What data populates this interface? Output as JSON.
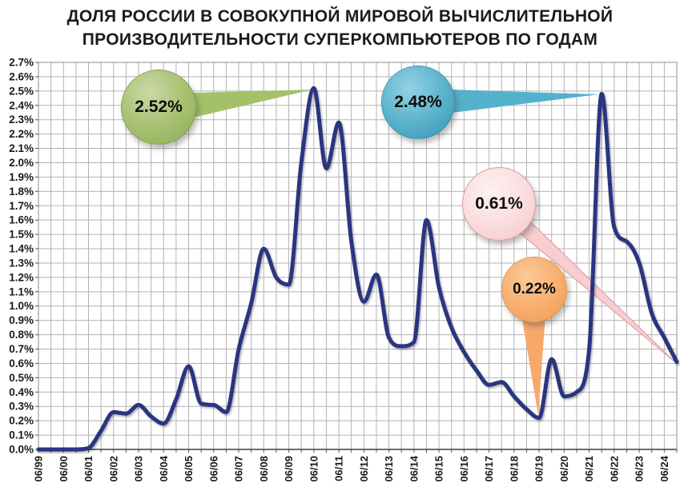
{
  "title": {
    "line1": "ДОЛЯ РОССИИ В СОВОКУПНОЙ МИРОВОЙ ВЫЧИСЛИТЕЛЬНОЙ",
    "line2": "ПРОИЗВОДИТЕЛЬНОСТИ СУПЕРКОМПЬЮТЕРОВ ПО ГОДАМ"
  },
  "chart_data": {
    "type": "line",
    "x": [
      "06/99",
      "11/99",
      "06/00",
      "11/00",
      "06/01",
      "11/01",
      "06/02",
      "11/02",
      "06/03",
      "11/03",
      "06/04",
      "11/04",
      "06/05",
      "11/05",
      "06/06",
      "11/06",
      "06/07",
      "11/07",
      "06/08",
      "11/08",
      "06/09",
      "11/09",
      "06/10",
      "11/10",
      "06/11",
      "11/11",
      "06/12",
      "11/12",
      "06/13",
      "11/13",
      "06/14",
      "11/14",
      "06/15",
      "11/15",
      "06/16",
      "11/16",
      "06/17",
      "11/17",
      "06/18",
      "11/18",
      "06/19",
      "11/19",
      "06/20",
      "11/20",
      "06/21",
      "11/21",
      "06/22",
      "11/22",
      "06/23",
      "11/23",
      "06/24",
      "11/24"
    ],
    "values": [
      0.0,
      0.0,
      0.0,
      0.0,
      0.01,
      0.13,
      0.26,
      0.25,
      0.31,
      0.23,
      0.18,
      0.35,
      0.58,
      0.32,
      0.31,
      0.26,
      0.7,
      1.02,
      1.4,
      1.2,
      1.15,
      2.0,
      2.52,
      1.96,
      2.28,
      1.45,
      1.03,
      1.22,
      0.78,
      0.72,
      0.75,
      1.6,
      1.13,
      0.85,
      0.68,
      0.55,
      0.45,
      0.47,
      0.37,
      0.28,
      0.22,
      0.63,
      0.37,
      0.4,
      0.7,
      2.48,
      1.55,
      1.45,
      1.3,
      0.95,
      0.78,
      0.61
    ],
    "x_tick_step": 2,
    "y_tick_labels": [
      "0.0%",
      "0.1%",
      "0.2%",
      "0.3%",
      "0.4%",
      "0.5%",
      "0.6%",
      "0.7%",
      "0.8%",
      "0.9%",
      "1.0%",
      "1.1%",
      "1.2%",
      "1.3%",
      "1.4%",
      "1.5%",
      "1.6%",
      "1.7%",
      "1.8%",
      "1.9%",
      "2.0%",
      "2.1%",
      "2.2%",
      "2.3%",
      "2.4%",
      "2.5%",
      "2.6%",
      "2.7%"
    ],
    "ylim": [
      0,
      2.7
    ],
    "grid": true,
    "legend": "none",
    "line_color": "#2B3480",
    "grid_color": "#B3B3B3",
    "axis_text_color": "#1A1A1A",
    "annotations": [
      {
        "label": "2.52%",
        "x": "06/10",
        "value": 2.52,
        "color": "#A4C169"
      },
      {
        "label": "2.48%",
        "x": "11/21",
        "value": 2.48,
        "color": "#54B1CC"
      },
      {
        "label": "0.61%",
        "x": "11/24",
        "value": 0.61,
        "color": "#F8CDCD"
      },
      {
        "label": "0.22%",
        "x": "06/19",
        "value": 0.22,
        "color": "#F6A96B"
      }
    ]
  }
}
